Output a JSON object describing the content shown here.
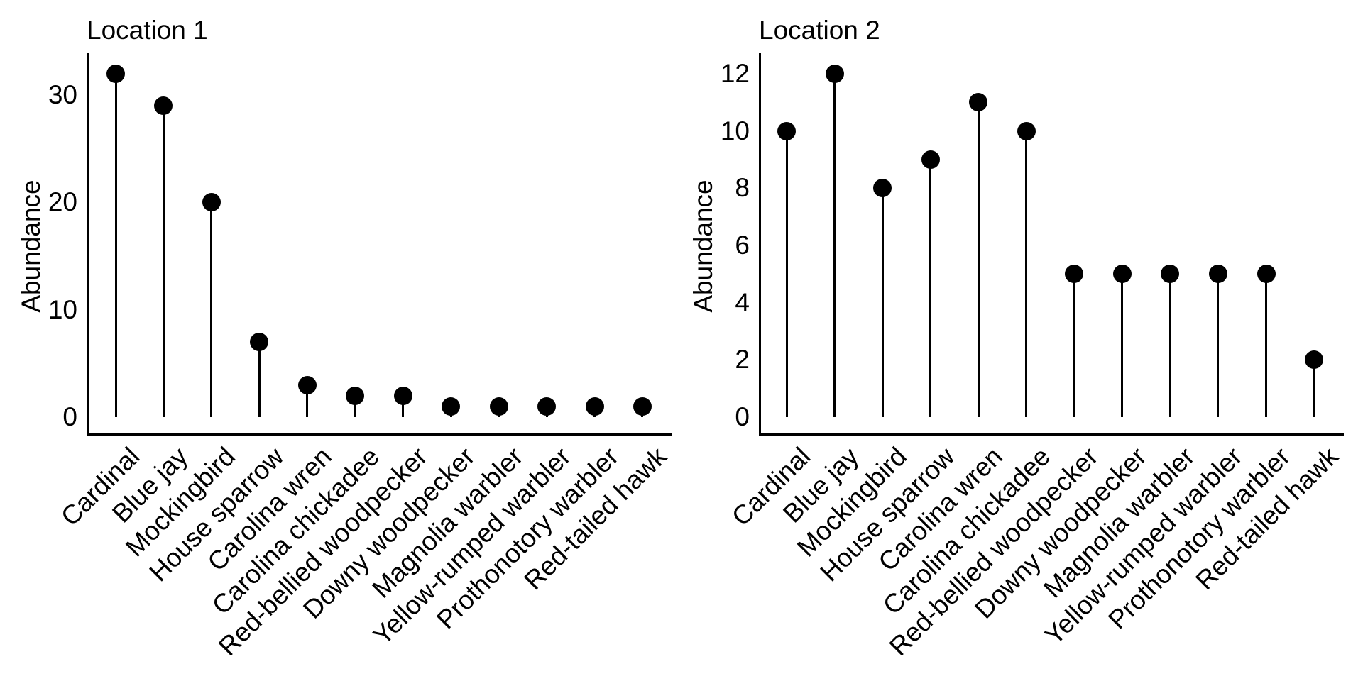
{
  "colors": {
    "ink": "#000000",
    "background": "#ffffff"
  },
  "chart_data": [
    {
      "type": "lollipop",
      "title": "Location 1",
      "xlabel": "",
      "ylabel": "Abundance",
      "categories": [
        "Cardinal",
        "Blue jay",
        "Mockingbird",
        "House sparrow",
        "Carolina wren",
        "Carolina chickadee",
        "Red-bellied woodpecker",
        "Downy woodpecker",
        "Magnolia warbler",
        "Yellow-rumped warbler",
        "Prothonotory warbler",
        "Red-tailed hawk"
      ],
      "values": [
        32,
        29,
        20,
        7,
        3,
        2,
        2,
        1,
        1,
        1,
        1,
        1
      ],
      "yticks": [
        0,
        10,
        20,
        30
      ],
      "ylim": [
        0,
        34
      ],
      "grid": false,
      "legend": "none",
      "marker": "filled-circle",
      "x_tick_rotation_deg": 45
    },
    {
      "type": "lollipop",
      "title": "Location 2",
      "xlabel": "",
      "ylabel": "Abundance",
      "categories": [
        "Cardinal",
        "Blue jay",
        "Mockingbird",
        "House sparrow",
        "Carolina wren",
        "Carolina chickadee",
        "Red-bellied woodpecker",
        "Downy woodpecker",
        "Magnolia warbler",
        "Yellow-rumped warbler",
        "Prothonotory warbler",
        "Red-tailed hawk"
      ],
      "values": [
        10,
        12,
        8,
        9,
        11,
        10,
        5,
        5,
        5,
        5,
        5,
        2
      ],
      "yticks": [
        0,
        2,
        4,
        6,
        8,
        10,
        12
      ],
      "ylim": [
        0,
        12.7
      ],
      "grid": false,
      "legend": "none",
      "marker": "filled-circle",
      "x_tick_rotation_deg": 45
    }
  ]
}
